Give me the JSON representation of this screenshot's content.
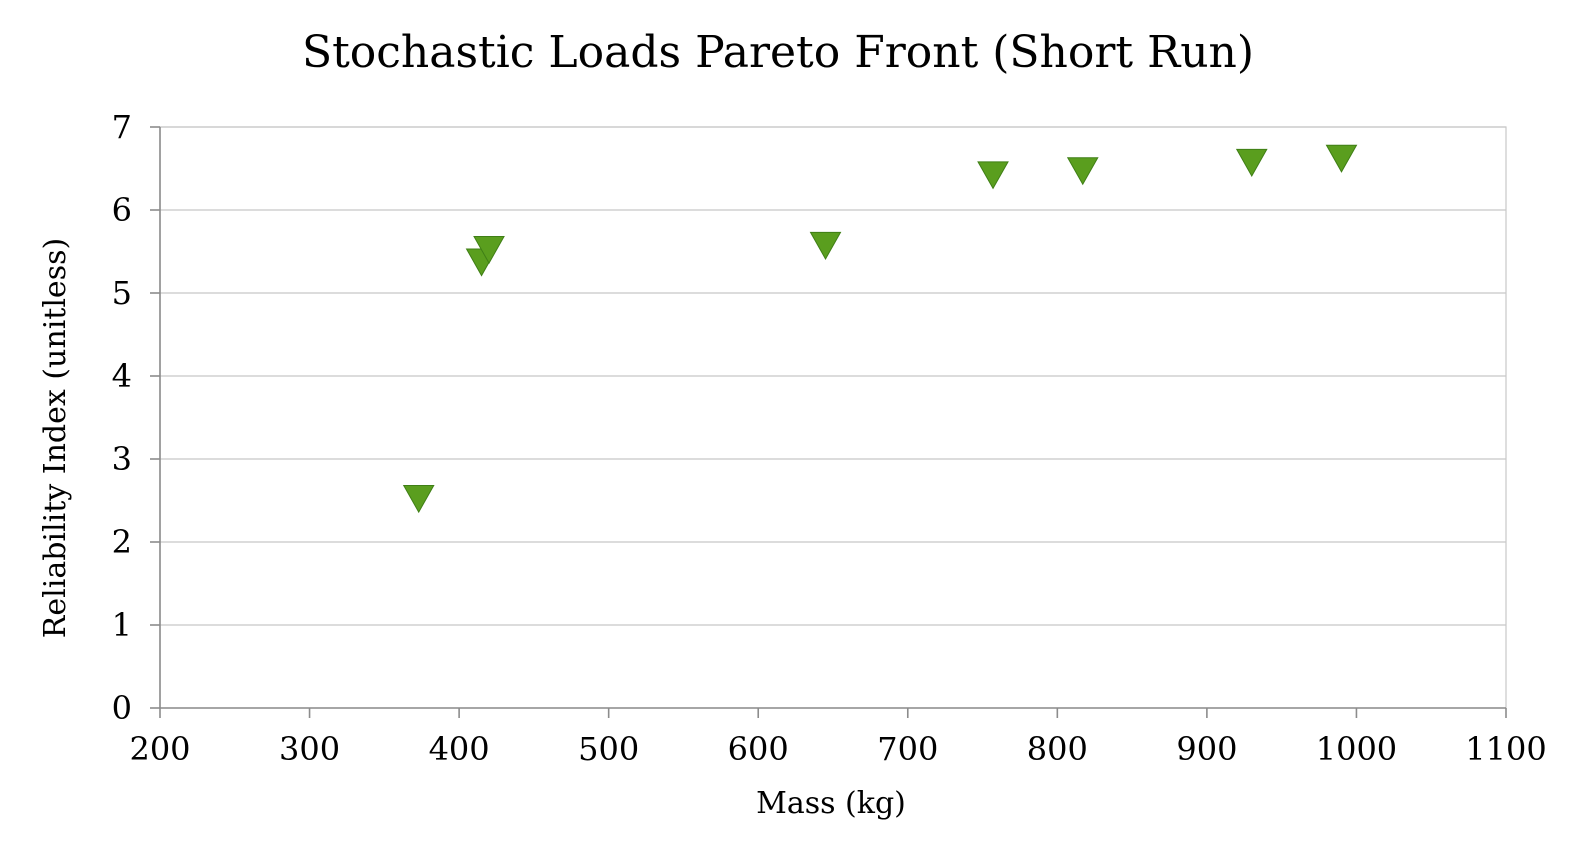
{
  "chart_data": {
    "type": "scatter",
    "title": "Stochastic Loads Pareto Front (Short Run)",
    "xlabel": "Mass (kg)",
    "ylabel": "Reliability Index (unitless)",
    "xlim": [
      200,
      1100
    ],
    "ylim": [
      0,
      7
    ],
    "x_ticks": [
      200,
      300,
      400,
      500,
      600,
      700,
      800,
      900,
      1000,
      1100
    ],
    "y_ticks": [
      0,
      1,
      2,
      3,
      4,
      5,
      6,
      7
    ],
    "grid": true,
    "legend": "none",
    "marker": "triangle-down",
    "marker_color": "#5a9e1e",
    "series": [
      {
        "x": [
          373,
          415,
          420,
          645,
          757,
          817,
          930,
          990
        ],
        "y": [
          2.55,
          5.4,
          5.55,
          5.6,
          6.45,
          6.5,
          6.6,
          6.65
        ]
      }
    ]
  }
}
